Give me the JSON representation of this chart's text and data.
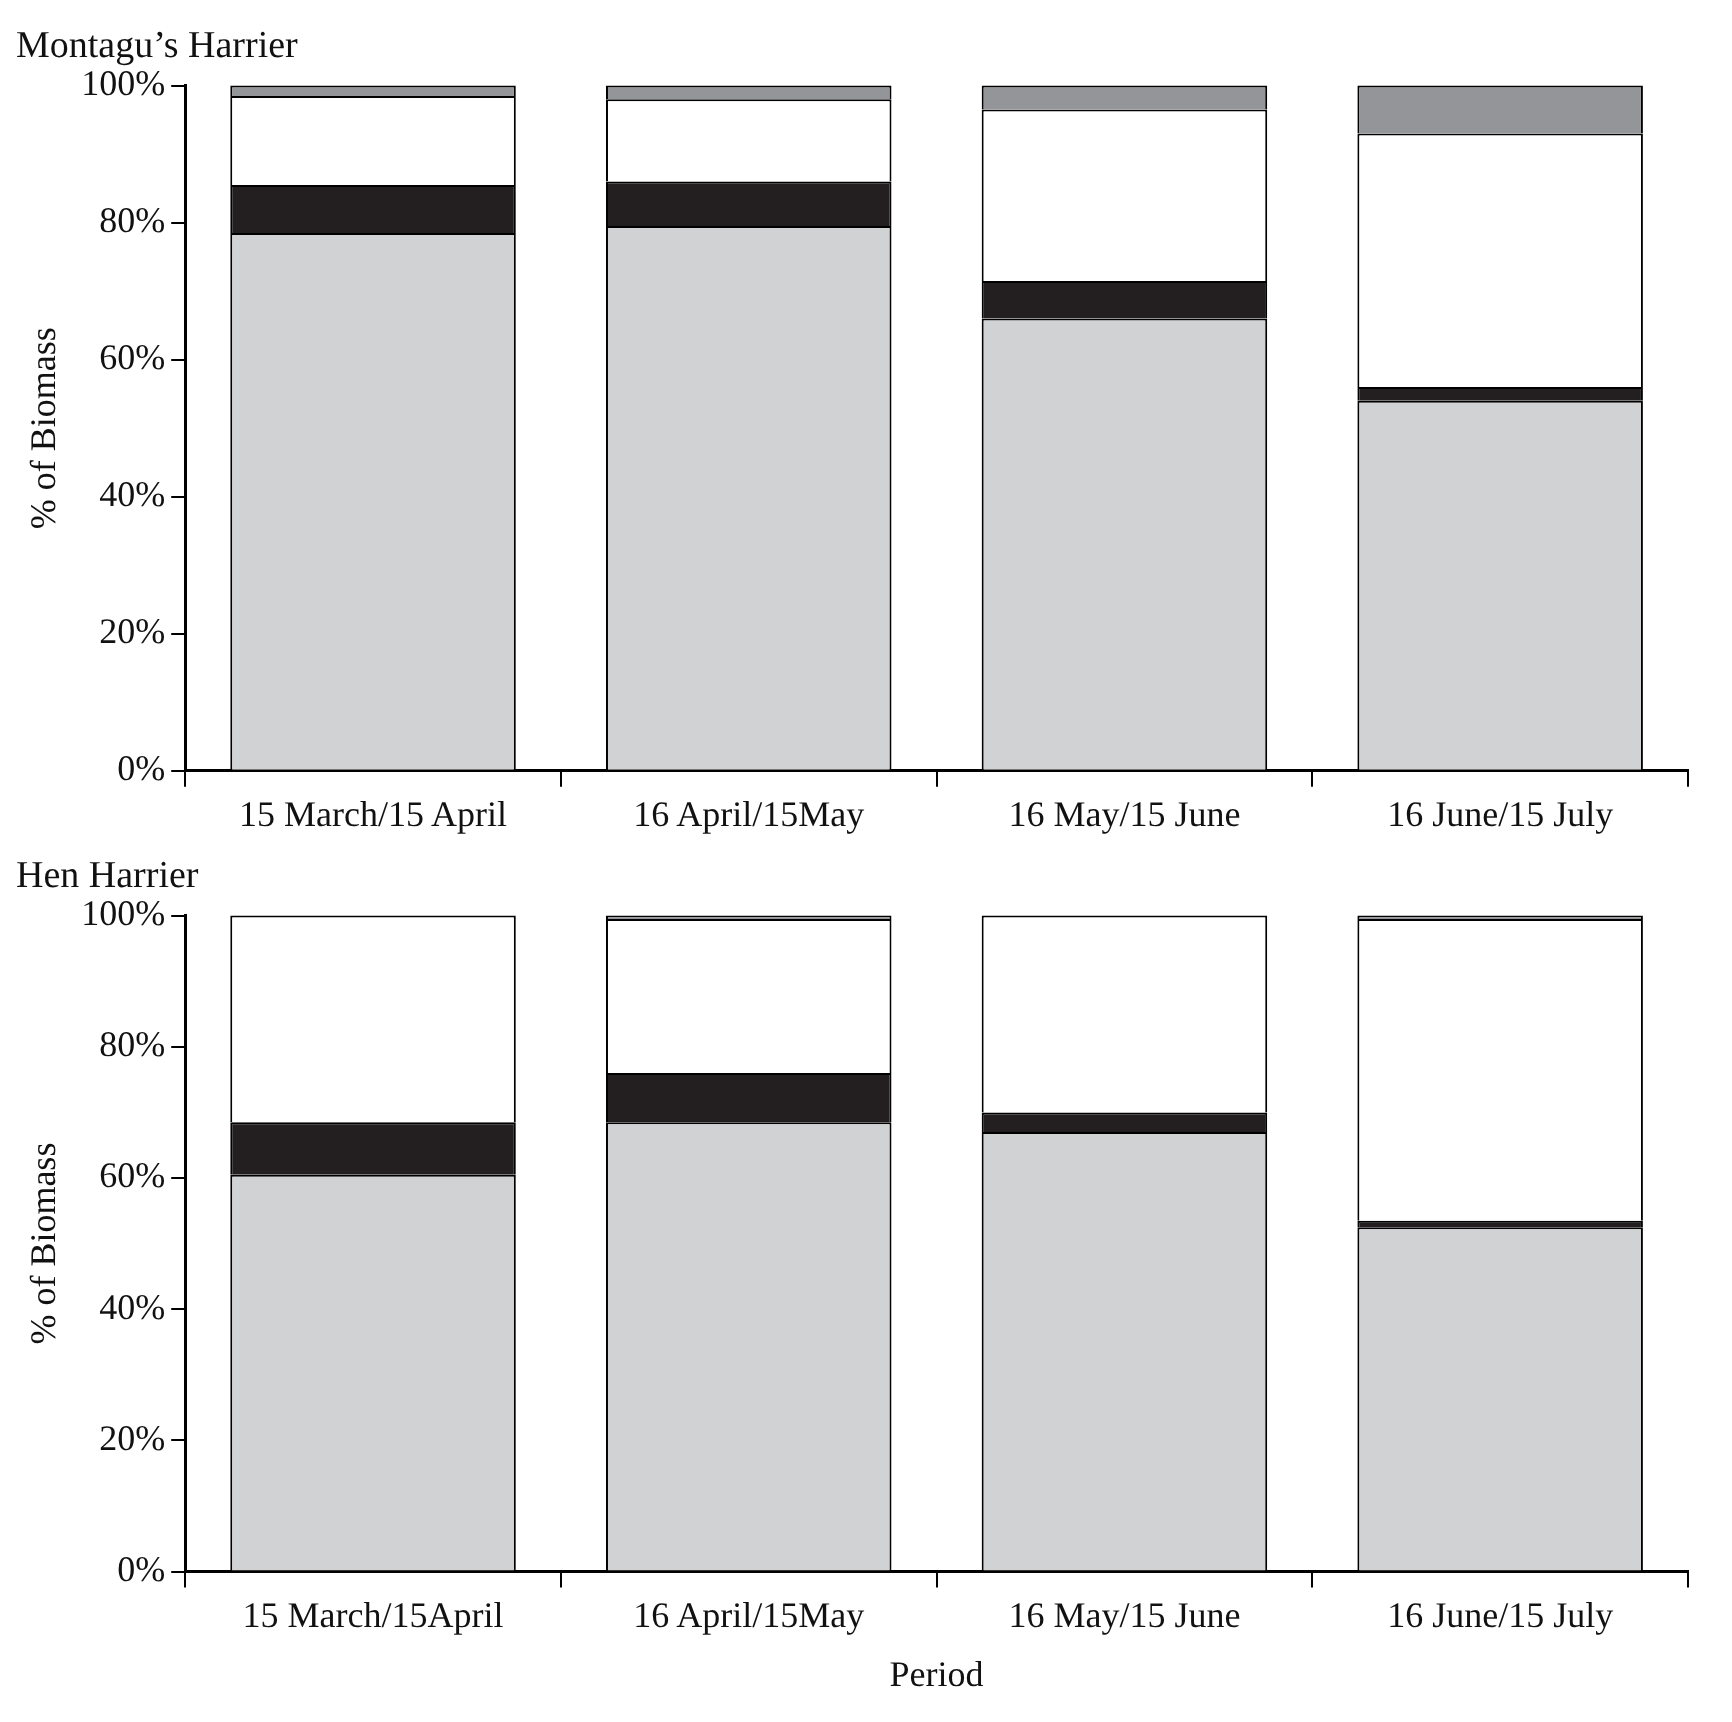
{
  "chart_data": [
    {
      "type": "bar",
      "title": "Montagu’s Harrier",
      "ylabel": "% of Biomass",
      "stacked": true,
      "legend": false,
      "grid": false,
      "categories": [
        "15 March/15 April",
        "16 April/15May",
        "16 May/15 June",
        "16 June/15 July"
      ],
      "ylim": [
        0,
        100
      ],
      "yticks": [
        {
          "value": 0,
          "label": "0%"
        },
        {
          "value": 20,
          "label": "20%"
        },
        {
          "value": 40,
          "label": "40%"
        },
        {
          "value": 60,
          "label": "60%"
        },
        {
          "value": 80,
          "label": "80%"
        },
        {
          "value": 100,
          "label": "100%"
        }
      ],
      "series": [
        {
          "color": "#d1d2d4",
          "values": [
            78.5,
            79.5,
            66,
            54
          ]
        },
        {
          "color": "#231f20",
          "values": [
            7,
            6.5,
            5.5,
            2
          ]
        },
        {
          "color": "#ffffff",
          "values": [
            13,
            12,
            25,
            37
          ]
        },
        {
          "color": "#939598",
          "values": [
            1.5,
            2,
            3.5,
            7
          ]
        }
      ]
    },
    {
      "type": "bar",
      "title": "Hen Harrier",
      "ylabel": "% of Biomass",
      "xlabel": "Period",
      "stacked": true,
      "legend": false,
      "grid": false,
      "categories": [
        "15 March/15April",
        "16 April/15May",
        "16 May/15 June",
        "16 June/15 July"
      ],
      "ylim": [
        0,
        100
      ],
      "yticks": [
        {
          "value": 0,
          "label": "0%"
        },
        {
          "value": 20,
          "label": "20%"
        },
        {
          "value": 40,
          "label": "40%"
        },
        {
          "value": 60,
          "label": "60%"
        },
        {
          "value": 80,
          "label": "80%"
        },
        {
          "value": 100,
          "label": "100%"
        }
      ],
      "series": [
        {
          "color": "#d1d2d4",
          "values": [
            60.5,
            68.5,
            67,
            52.5
          ]
        },
        {
          "color": "#231f20",
          "values": [
            8,
            7.5,
            3,
            1
          ]
        },
        {
          "color": "#ffffff",
          "values": [
            31.5,
            23.5,
            30,
            46
          ]
        },
        {
          "color": "#939598",
          "values": [
            0,
            0.5,
            0,
            0.5
          ]
        }
      ]
    }
  ]
}
